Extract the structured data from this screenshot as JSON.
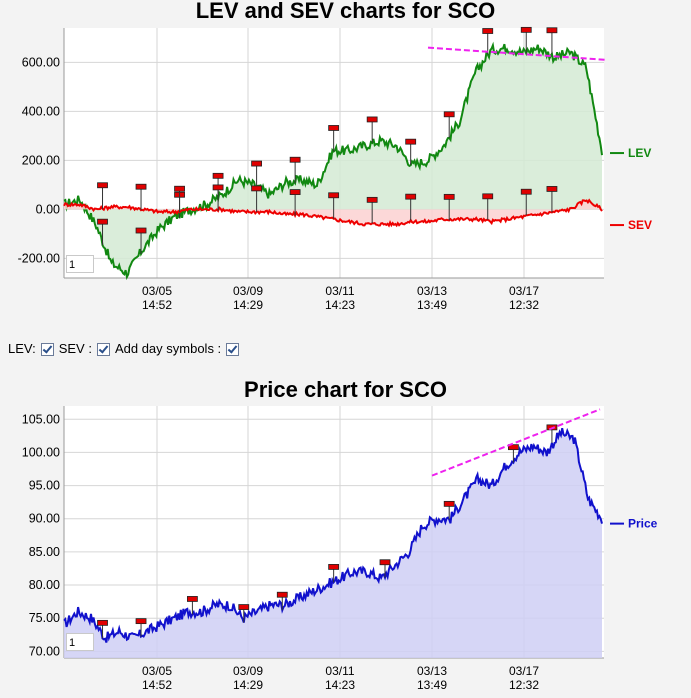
{
  "charts": [
    {
      "title": "LEV and SEV charts for SCO",
      "zoom_value": "1",
      "chart_data": {
        "type": "area",
        "title": "LEV and SEV charts for SCO",
        "x_ticks": [
          {
            "date": "03/05",
            "time": "14:52"
          },
          {
            "date": "03/09",
            "time": "14:29"
          },
          {
            "date": "03/11",
            "time": "14:23"
          },
          {
            "date": "03/13",
            "time": "13:49"
          },
          {
            "date": "03/17",
            "time": "12:32"
          }
        ],
        "y_ticks": [
          "600.00",
          "400.00",
          "200.00",
          "0.00",
          "-200.00"
        ],
        "y_values": [
          600,
          400,
          200,
          0,
          -200
        ],
        "ylim": [
          -280,
          740
        ],
        "series": [
          {
            "name": "LEV",
            "color": "#118811",
            "values": [
              20,
              40,
              -60,
              -220,
              -260,
              -160,
              -80,
              -30,
              0,
              20,
              60,
              120,
              100,
              60,
              110,
              120,
              100,
              240,
              240,
              260,
              280,
              260,
              180,
              200,
              260,
              360,
              560,
              650,
              660,
              640,
              660,
              620,
              640,
              580,
              240
            ]
          },
          {
            "name": "SEV",
            "color": "#ee0000",
            "values": [
              20,
              20,
              0,
              10,
              10,
              0,
              -10,
              -10,
              0,
              0,
              0,
              -10,
              -10,
              -10,
              -20,
              -20,
              -30,
              -40,
              -50,
              -60,
              -60,
              -60,
              -50,
              -50,
              -40,
              -40,
              -40,
              -50,
              -40,
              -30,
              -20,
              -10,
              0,
              40,
              0
            ]
          }
        ],
        "trendline": {
          "from": 660,
          "to": 610
        },
        "legend": "right"
      }
    },
    {
      "title": "Price chart for SCO",
      "zoom_value": "1",
      "chart_data": {
        "type": "area",
        "title": "Price chart for SCO",
        "x_ticks": [
          {
            "date": "03/05",
            "time": "14:52"
          },
          {
            "date": "03/09",
            "time": "14:29"
          },
          {
            "date": "03/11",
            "time": "14:23"
          },
          {
            "date": "03/13",
            "time": "13:49"
          },
          {
            "date": "03/17",
            "time": "12:32"
          }
        ],
        "y_ticks": [
          "105.00",
          "100.00",
          "95.00",
          "90.00",
          "85.00",
          "80.00",
          "75.00",
          "70.00"
        ],
        "y_values": [
          105,
          100,
          95,
          90,
          85,
          80,
          75,
          70
        ],
        "ylim": [
          69,
          107
        ],
        "series": [
          {
            "name": "Price",
            "color": "#1111cc",
            "values": [
              74,
              76,
              75,
              72,
              73,
              72,
              73,
              74,
              75,
              76,
              76,
              77,
              77,
              75,
              76,
              77,
              77,
              78,
              79,
              80,
              81,
              82,
              82,
              81,
              83,
              85,
              89,
              90,
              90,
              93,
              96,
              95,
              98,
              100,
              101,
              100,
              103,
              102,
              93,
              90
            ]
          }
        ],
        "trendline": {
          "from": 96.5,
          "to": 106.5
        },
        "legend": "right"
      }
    }
  ],
  "controls": {
    "lev_label": "LEV:",
    "sev_label": "SEV :",
    "day_symbols_label": "Add day symbols :"
  }
}
